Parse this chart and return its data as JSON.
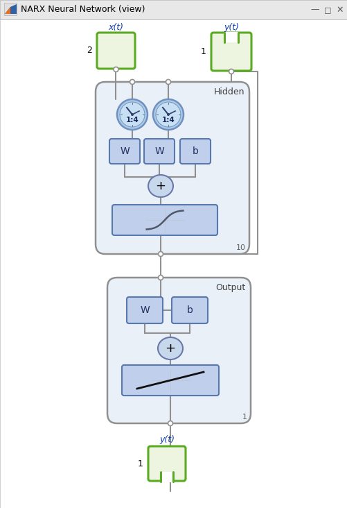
{
  "title": "NARX Neural Network (view)",
  "input1_label": "x(t)",
  "input2_label": "y(t)",
  "output_label": "y(t)",
  "input1_size": "2",
  "input2_size": "1",
  "output_size": "1",
  "hidden_label": "Hidden",
  "output_layer_label": "Output",
  "hidden_size_label": "10",
  "output_size_label": "1",
  "delay_label": "1:4",
  "green_fill": "#edf5e0",
  "green_edge": "#5aaa22",
  "blue_fill": "#c0d0ec",
  "blue_edge": "#5878b0",
  "clock_fill": "#aacce8",
  "clock_face": "#c8e0f4",
  "clock_edge": "#7090c0",
  "layer_fill": "#eaf0f8",
  "layer_edge": "#909090",
  "sum_fill": "#c8d8ec",
  "sum_edge": "#6878a8",
  "wire_color": "#909090",
  "node_fill": "#ffffff",
  "titlebar_fill": "#e8e8e8",
  "window_fill": "#ffffff"
}
